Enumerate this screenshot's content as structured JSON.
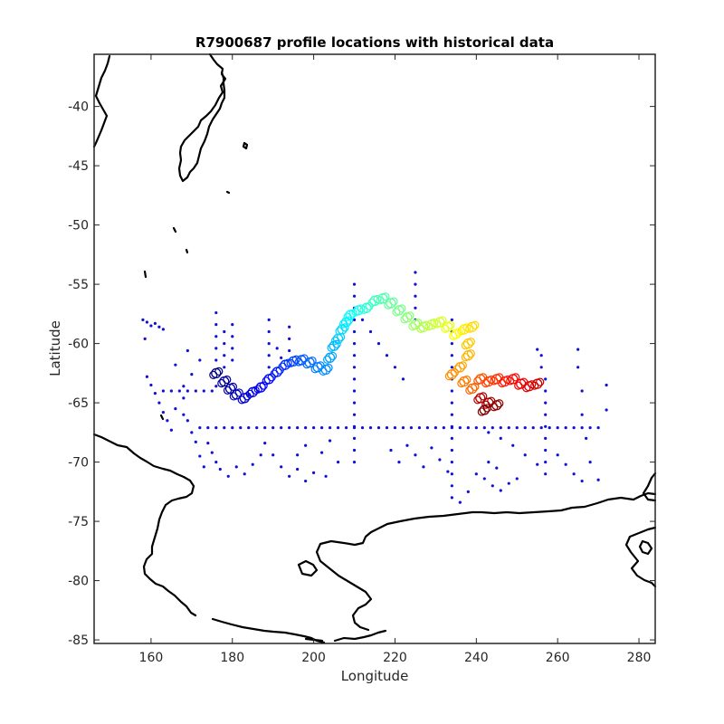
{
  "chart_data": {
    "type": "scatter",
    "title": "R7900687 profile locations with historical data",
    "xlabel": "Longitude",
    "ylabel": "Latitude",
    "xlim": [
      146,
      284
    ],
    "ylim": [
      -85.3,
      -35.6
    ],
    "xticks": [
      160,
      180,
      200,
      220,
      240,
      260,
      280
    ],
    "yticks": [
      -85,
      -80,
      -75,
      -70,
      -65,
      -60,
      -55,
      -50,
      -45,
      -40
    ],
    "grid": false,
    "legend": "none",
    "colors": {
      "historical": "#1010d8",
      "coastline": "#000000",
      "axes": "#262626",
      "colormap": "jet"
    },
    "series": [
      {
        "marker": "dot",
        "color": "#1010d8",
        "note_points": "approximate",
        "points": [
          [
            158.5,
            -59.6
          ],
          [
            159,
            -62.8
          ],
          [
            160,
            -63.5
          ],
          [
            161,
            -64.2
          ],
          [
            162,
            -65
          ],
          [
            163,
            -65.8
          ],
          [
            164,
            -66.5
          ],
          [
            165,
            -67.3
          ],
          [
            158,
            -58
          ],
          [
            159,
            -58.2
          ],
          [
            160,
            -58.5
          ],
          [
            161,
            -58.3
          ],
          [
            162,
            -58.6
          ],
          [
            163,
            -58.8
          ],
          [
            166,
            -61.8
          ],
          [
            168,
            -63.6
          ],
          [
            168,
            -64.6
          ],
          [
            169,
            -60.6
          ],
          [
            170,
            -62.6
          ],
          [
            172,
            -61.4
          ],
          [
            163,
            -64
          ],
          [
            165,
            -64
          ],
          [
            167,
            -64
          ],
          [
            169,
            -64
          ],
          [
            171,
            -64
          ],
          [
            173,
            -64
          ],
          [
            175,
            -64
          ],
          [
            176,
            -63.6
          ],
          [
            166,
            -65.5
          ],
          [
            168,
            -66
          ],
          [
            169,
            -66.5
          ],
          [
            170,
            -67.5
          ],
          [
            171,
            -68.3
          ],
          [
            172,
            -69.5
          ],
          [
            173,
            -70.4
          ],
          [
            174,
            -68.4
          ],
          [
            175,
            -69.2
          ],
          [
            176,
            -70
          ],
          [
            177,
            -70.6
          ],
          [
            179,
            -71.2
          ],
          [
            181,
            -70.4
          ],
          [
            183,
            -71
          ],
          [
            185,
            -70.2
          ],
          [
            187,
            -69.4
          ],
          [
            188,
            -68.4
          ],
          [
            190,
            -69.4
          ],
          [
            192,
            -70.4
          ],
          [
            194,
            -71.2
          ],
          [
            196,
            -70.6
          ],
          [
            198,
            -71.6
          ],
          [
            200,
            -70.9
          ],
          [
            176,
            -57.4
          ],
          [
            176,
            -58.4
          ],
          [
            176,
            -59.4
          ],
          [
            176,
            -60.4
          ],
          [
            176,
            -61.4
          ],
          [
            180,
            -58.4
          ],
          [
            180,
            -59.4
          ],
          [
            180,
            -60.4
          ],
          [
            180,
            -61.4
          ],
          [
            189,
            -58
          ],
          [
            189,
            -59
          ],
          [
            189,
            -60
          ],
          [
            189,
            -61
          ],
          [
            189,
            -62
          ],
          [
            178,
            -59
          ],
          [
            178,
            -60
          ],
          [
            178,
            -61
          ],
          [
            178,
            -62
          ],
          [
            194,
            -58.6
          ],
          [
            194,
            -59.6
          ],
          [
            194,
            -60.6
          ],
          [
            191,
            -60.4
          ],
          [
            192,
            -61.2
          ],
          [
            210,
            -55
          ],
          [
            210,
            -56
          ],
          [
            210,
            -57
          ],
          [
            210,
            -58
          ],
          [
            210,
            -59
          ],
          [
            210,
            -60
          ],
          [
            210,
            -61
          ],
          [
            210,
            -62
          ],
          [
            210,
            -63
          ],
          [
            210,
            -64
          ],
          [
            210,
            -65
          ],
          [
            210,
            -66
          ],
          [
            210,
            -67
          ],
          [
            210,
            -68
          ],
          [
            210,
            -69
          ],
          [
            210,
            -70
          ],
          [
            212,
            -58
          ],
          [
            214,
            -59
          ],
          [
            216,
            -60
          ],
          [
            218,
            -61
          ],
          [
            220,
            -62
          ],
          [
            222,
            -63
          ],
          [
            225,
            -54
          ],
          [
            225,
            -55
          ],
          [
            225,
            -56
          ],
          [
            225,
            -57
          ],
          [
            225,
            -58
          ],
          [
            234,
            -58
          ],
          [
            234,
            -59
          ],
          [
            234,
            -60
          ],
          [
            234,
            -61
          ],
          [
            234,
            -62
          ],
          [
            234,
            -63
          ],
          [
            234,
            -64
          ],
          [
            234,
            -65
          ],
          [
            234,
            -66
          ],
          [
            234,
            -67
          ],
          [
            234,
            -68
          ],
          [
            234,
            -69
          ],
          [
            234,
            -70
          ],
          [
            234,
            -71
          ],
          [
            234,
            -72
          ],
          [
            234,
            -73
          ],
          [
            256,
            -61
          ],
          [
            256,
            -62
          ],
          [
            257,
            -63
          ],
          [
            257,
            -64
          ],
          [
            257,
            -65
          ],
          [
            257,
            -66
          ],
          [
            257,
            -67
          ],
          [
            257,
            -68
          ],
          [
            257,
            -69
          ],
          [
            257,
            -70
          ],
          [
            257,
            -71
          ],
          [
            255,
            -60.5
          ],
          [
            265,
            -60.5
          ],
          [
            265,
            -62
          ],
          [
            266,
            -64
          ],
          [
            266,
            -66
          ],
          [
            267,
            -68
          ],
          [
            268,
            -70
          ],
          [
            270,
            -71.5
          ],
          [
            272,
            -63.5
          ],
          [
            272,
            -65.6
          ],
          [
            243,
            -67.5
          ],
          [
            246,
            -68
          ],
          [
            249,
            -68.6
          ],
          [
            252,
            -69.4
          ],
          [
            255,
            -70.2
          ],
          [
            260,
            -69.4
          ],
          [
            262,
            -70.2
          ],
          [
            264,
            -71
          ],
          [
            266,
            -71.6
          ],
          [
            240,
            -71
          ],
          [
            242,
            -71.4
          ],
          [
            244,
            -72
          ],
          [
            238,
            -72.5
          ],
          [
            236,
            -73.4
          ],
          [
            246,
            -72.4
          ],
          [
            248,
            -71.8
          ],
          [
            250,
            -71.4
          ],
          [
            229,
            -68.8
          ],
          [
            231,
            -69.8
          ],
          [
            233,
            -70.8
          ],
          [
            227,
            -70.4
          ],
          [
            225,
            -69.4
          ],
          [
            223,
            -68.6
          ],
          [
            221,
            -70
          ],
          [
            219,
            -69
          ],
          [
            204,
            -68.2
          ],
          [
            202,
            -69.2
          ],
          [
            203,
            -71.2
          ],
          [
            206,
            -70
          ],
          [
            198,
            -68.6
          ],
          [
            196,
            -69.4
          ],
          [
            243,
            -70
          ],
          [
            245,
            -70.5
          ]
        ],
        "hline": {
          "y": -67.1,
          "x": [
            172,
            174,
            176,
            178,
            180,
            182,
            184,
            186,
            188,
            190,
            192,
            194,
            196,
            198,
            200,
            202,
            204,
            206,
            208,
            210,
            212,
            214,
            216,
            218,
            220,
            222,
            224,
            226,
            228,
            230,
            232,
            234,
            236,
            238,
            240,
            242,
            244,
            246,
            248,
            250,
            252,
            254,
            256,
            258,
            260,
            262,
            264,
            266,
            268,
            270
          ]
        }
      },
      {
        "marker": "open-circle-colored",
        "colormap": "jet",
        "note_points": "approximate",
        "points": [
          [
            176,
            -62.5
          ],
          [
            178,
            -63.2
          ],
          [
            179.5,
            -63.8
          ],
          [
            181,
            -64.3
          ],
          [
            183,
            -64.6
          ],
          [
            185,
            -64.1
          ],
          [
            187,
            -63.7
          ],
          [
            189,
            -63
          ],
          [
            191,
            -62.4
          ],
          [
            193,
            -61.8
          ],
          [
            195,
            -61.5
          ],
          [
            197,
            -61.4
          ],
          [
            199,
            -61.6
          ],
          [
            201,
            -62
          ],
          [
            203,
            -62.2
          ],
          [
            204,
            -61.2
          ],
          [
            205,
            -60.2
          ],
          [
            206,
            -59.6
          ],
          [
            207,
            -58.8
          ],
          [
            208,
            -58.2
          ],
          [
            209,
            -57.6
          ],
          [
            211,
            -57.2
          ],
          [
            213,
            -57
          ],
          [
            215,
            -56.4
          ],
          [
            217,
            -56.2
          ],
          [
            219,
            -56.6
          ],
          [
            221,
            -57.2
          ],
          [
            223,
            -57.8
          ],
          [
            225,
            -58.4
          ],
          [
            227,
            -58.6
          ],
          [
            229,
            -58.4
          ],
          [
            231,
            -58.2
          ],
          [
            233,
            -58.6
          ],
          [
            235,
            -59.2
          ],
          [
            237,
            -58.8
          ],
          [
            239,
            -58.6
          ],
          [
            238,
            -60
          ],
          [
            238,
            -61
          ],
          [
            236,
            -62
          ],
          [
            234,
            -62.6
          ],
          [
            237,
            -63.2
          ],
          [
            239,
            -63.8
          ],
          [
            241,
            -63
          ],
          [
            243,
            -63.2
          ],
          [
            245,
            -63
          ],
          [
            247,
            -63.2
          ],
          [
            249,
            -63
          ],
          [
            251,
            -63.4
          ],
          [
            253,
            -63.6
          ],
          [
            255,
            -63.4
          ],
          [
            241,
            -64.6
          ],
          [
            243,
            -65
          ],
          [
            245,
            -65.2
          ],
          [
            242,
            -65.6
          ]
        ]
      }
    ]
  }
}
